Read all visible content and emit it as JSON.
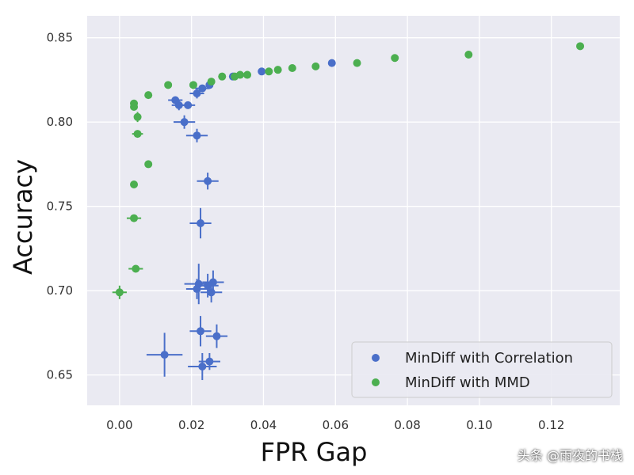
{
  "chart_data": {
    "type": "scatter",
    "xlabel": "FPR Gap",
    "ylabel": "Accuracy",
    "xlim": [
      -0.009,
      0.139
    ],
    "ylim": [
      0.632,
      0.863
    ],
    "xticks": [
      "0.00",
      "0.02",
      "0.04",
      "0.06",
      "0.08",
      "0.10",
      "0.12"
    ],
    "yticks": [
      "0.65",
      "0.70",
      "0.75",
      "0.80",
      "0.85"
    ],
    "grid": true,
    "legend_position": "bottom-right",
    "series": [
      {
        "name": "MinDiff with Correlation",
        "color": "#4a6fc9",
        "points": [
          {
            "x": 0.0125,
            "y": 0.662,
            "xerr": 0.005,
            "yerr": 0.013
          },
          {
            "x": 0.023,
            "y": 0.655,
            "xerr": 0.004,
            "yerr": 0.008
          },
          {
            "x": 0.025,
            "y": 0.658,
            "xerr": 0.003,
            "yerr": 0.005
          },
          {
            "x": 0.0225,
            "y": 0.676,
            "xerr": 0.003,
            "yerr": 0.009
          },
          {
            "x": 0.027,
            "y": 0.673,
            "xerr": 0.003,
            "yerr": 0.007
          },
          {
            "x": 0.022,
            "y": 0.704,
            "xerr": 0.004,
            "yerr": 0.012
          },
          {
            "x": 0.0215,
            "y": 0.701,
            "xerr": 0.003,
            "yerr": 0.006
          },
          {
            "x": 0.0245,
            "y": 0.703,
            "xerr": 0.003,
            "yerr": 0.007
          },
          {
            "x": 0.026,
            "y": 0.705,
            "xerr": 0.003,
            "yerr": 0.007
          },
          {
            "x": 0.0255,
            "y": 0.699,
            "xerr": 0.003,
            "yerr": 0.006
          },
          {
            "x": 0.0225,
            "y": 0.74,
            "xerr": 0.003,
            "yerr": 0.009
          },
          {
            "x": 0.0245,
            "y": 0.765,
            "xerr": 0.003,
            "yerr": 0.005
          },
          {
            "x": 0.0215,
            "y": 0.792,
            "xerr": 0.003,
            "yerr": 0.004
          },
          {
            "x": 0.018,
            "y": 0.8,
            "xerr": 0.003,
            "yerr": 0.004
          },
          {
            "x": 0.0165,
            "y": 0.81,
            "xerr": 0.002,
            "yerr": 0.003
          },
          {
            "x": 0.019,
            "y": 0.81,
            "xerr": 0.002,
            "yerr": 0.002
          },
          {
            "x": 0.0155,
            "y": 0.813,
            "xerr": 0.002,
            "yerr": 0.002
          },
          {
            "x": 0.0215,
            "y": 0.817,
            "xerr": 0.002,
            "yerr": 0.003
          },
          {
            "x": 0.023,
            "y": 0.82,
            "xerr": 0.002,
            "yerr": 0.002
          },
          {
            "x": 0.025,
            "y": 0.822,
            "xerr": 0.001,
            "yerr": 0.002
          },
          {
            "x": 0.0315,
            "y": 0.827,
            "xerr": 0.001,
            "yerr": 0.001
          },
          {
            "x": 0.0395,
            "y": 0.83,
            "xerr": 0.001,
            "yerr": 0.001
          },
          {
            "x": 0.059,
            "y": 0.835,
            "xerr": 0.0,
            "yerr": 0.0
          }
        ]
      },
      {
        "name": "MinDiff with MMD",
        "color": "#4caf50",
        "points": [
          {
            "x": 0.0,
            "y": 0.699,
            "xerr": 0.002,
            "yerr": 0.004
          },
          {
            "x": 0.0045,
            "y": 0.713,
            "xerr": 0.002,
            "yerr": 0.002
          },
          {
            "x": 0.004,
            "y": 0.743,
            "xerr": 0.002,
            "yerr": 0.002
          },
          {
            "x": 0.004,
            "y": 0.763,
            "xerr": 0.001,
            "yerr": 0.002
          },
          {
            "x": 0.008,
            "y": 0.775,
            "xerr": 0.001,
            "yerr": 0.002
          },
          {
            "x": 0.005,
            "y": 0.793,
            "xerr": 0.0015,
            "yerr": 0.002
          },
          {
            "x": 0.005,
            "y": 0.803,
            "xerr": 0.001,
            "yerr": 0.003
          },
          {
            "x": 0.004,
            "y": 0.809,
            "xerr": 0.001,
            "yerr": 0.002
          },
          {
            "x": 0.004,
            "y": 0.811,
            "xerr": 0.001,
            "yerr": 0.002
          },
          {
            "x": 0.008,
            "y": 0.816,
            "xerr": 0.001,
            "yerr": 0.001
          },
          {
            "x": 0.0135,
            "y": 0.822,
            "xerr": 0.0,
            "yerr": 0.0
          },
          {
            "x": 0.0205,
            "y": 0.822,
            "xerr": 0.0,
            "yerr": 0.0
          },
          {
            "x": 0.0255,
            "y": 0.824,
            "xerr": 0.0,
            "yerr": 0.0
          },
          {
            "x": 0.0285,
            "y": 0.827,
            "xerr": 0.0,
            "yerr": 0.0
          },
          {
            "x": 0.032,
            "y": 0.827,
            "xerr": 0.0,
            "yerr": 0.0
          },
          {
            "x": 0.0335,
            "y": 0.828,
            "xerr": 0.0,
            "yerr": 0.0
          },
          {
            "x": 0.0355,
            "y": 0.828,
            "xerr": 0.0,
            "yerr": 0.0
          },
          {
            "x": 0.0415,
            "y": 0.83,
            "xerr": 0.0,
            "yerr": 0.0
          },
          {
            "x": 0.044,
            "y": 0.831,
            "xerr": 0.0,
            "yerr": 0.0
          },
          {
            "x": 0.048,
            "y": 0.832,
            "xerr": 0.0,
            "yerr": 0.0
          },
          {
            "x": 0.0545,
            "y": 0.833,
            "xerr": 0.0,
            "yerr": 0.0
          },
          {
            "x": 0.066,
            "y": 0.835,
            "xerr": 0.0,
            "yerr": 0.0
          },
          {
            "x": 0.0765,
            "y": 0.838,
            "xerr": 0.0,
            "yerr": 0.0
          },
          {
            "x": 0.097,
            "y": 0.84,
            "xerr": 0.0,
            "yerr": 0.0
          },
          {
            "x": 0.128,
            "y": 0.845,
            "xerr": 0.0,
            "yerr": 0.0
          }
        ]
      }
    ]
  },
  "watermark": "头条 @雨夜的书栈",
  "colors": {
    "plot_background": "#eaeaf2",
    "grid": "#ffffff",
    "legend_background": "#eaeaf2",
    "legend_border": "#cccccc"
  }
}
